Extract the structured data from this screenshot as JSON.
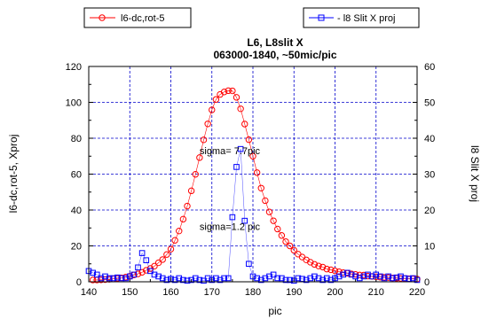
{
  "chart_data": {
    "type": "scatter",
    "title": "L6, L8slit X",
    "subtitle": "063000-1840, ~50mic/pic",
    "xlabel": "pic",
    "ylabel_left": "l6-dc,rot-5, Xproj",
    "ylabel_right": "l8 Slit X proj",
    "xlim": [
      140,
      220
    ],
    "ylim_left": [
      0,
      120
    ],
    "ylim_right": [
      0,
      60
    ],
    "x_ticks": [
      "140",
      "150",
      "160",
      "170",
      "180",
      "190",
      "200",
      "210",
      "220"
    ],
    "y_left_ticks": [
      "0",
      "20",
      "40",
      "60",
      "80",
      "100",
      "120"
    ],
    "y_right_ticks": [
      "0",
      "10",
      "20",
      "30",
      "40",
      "50",
      "60"
    ],
    "grid": true,
    "legend_position": "top",
    "annotations": [
      {
        "text": "sigma= 7.7pic",
        "x": 167,
        "y_left": 71
      },
      {
        "text": "sigma=1.2 pic",
        "x": 167,
        "y_left": 29
      }
    ],
    "series": [
      {
        "name": "l6-dc,rot-5",
        "axis": "left",
        "color": "#ff0000",
        "marker": "circle",
        "x": [
          141,
          142,
          143,
          144,
          145,
          146,
          147,
          148,
          149,
          150,
          151,
          152,
          153,
          154,
          155,
          156,
          157,
          158,
          159,
          160,
          161,
          162,
          163,
          164,
          165,
          166,
          167,
          168,
          169,
          170,
          171,
          172,
          173,
          174,
          175,
          176,
          177,
          178,
          179,
          180,
          181,
          182,
          183,
          184,
          185,
          186,
          187,
          188,
          189,
          190,
          191,
          192,
          193,
          194,
          195,
          196,
          197,
          198,
          199,
          200,
          201,
          202,
          203,
          204,
          205,
          206,
          207,
          208,
          209,
          210,
          211,
          212,
          213,
          214,
          215,
          216,
          217,
          218,
          219,
          220
        ],
        "y": [
          1.0,
          1.0,
          1.1,
          1.2,
          1.4,
          1.6,
          1.9,
          2.2,
          2.6,
          3.1,
          3.8,
          4.4,
          5.3,
          6.4,
          7.4,
          8.7,
          10.6,
          12.4,
          15.2,
          18.2,
          23.1,
          28.3,
          34.9,
          42.2,
          50.7,
          59.9,
          69.2,
          79.1,
          88.0,
          95.8,
          101.6,
          104.4,
          105.8,
          106.5,
          106.4,
          102.8,
          96.4,
          87.9,
          79.2,
          70.0,
          60.8,
          52.2,
          45.2,
          38.9,
          34.0,
          29.4,
          25.8,
          22.4,
          20.0,
          17.6,
          15.4,
          13.8,
          12.2,
          10.9,
          9.7,
          8.8,
          8.2,
          7.1,
          6.7,
          6.1,
          5.6,
          5.1,
          4.8,
          4.4,
          4.1,
          3.8,
          3.7,
          3.2,
          3.0,
          2.8,
          2.6,
          2.5,
          2.4,
          2.1,
          2.0,
          1.9,
          1.8,
          1.7,
          1.6,
          1.5
        ]
      },
      {
        "name": "l8 Slit X proj",
        "axis": "right",
        "color": "#0000ff",
        "marker": "square",
        "x": [
          140,
          141,
          142,
          143,
          144,
          145,
          146,
          147,
          148,
          149,
          150,
          151,
          152,
          153,
          154,
          155,
          156,
          157,
          158,
          159,
          160,
          161,
          162,
          163,
          164,
          165,
          166,
          167,
          168,
          169,
          170,
          171,
          172,
          173,
          174,
          175,
          176,
          177,
          178,
          179,
          180,
          181,
          182,
          183,
          184,
          185,
          186,
          187,
          188,
          189,
          190,
          191,
          192,
          193,
          194,
          195,
          196,
          197,
          198,
          199,
          200,
          201,
          202,
          203,
          204,
          205,
          206,
          207,
          208,
          209,
          210,
          211,
          212,
          213,
          214,
          215,
          216,
          217,
          218,
          219,
          220
        ],
        "y": [
          3.0,
          2.5,
          2.0,
          1.0,
          1.5,
          1.0,
          1.0,
          1.2,
          1.0,
          1.0,
          1.5,
          2.0,
          4.0,
          8.0,
          6.0,
          3.0,
          2.0,
          1.5,
          1.0,
          0.5,
          0.8,
          0.5,
          1.0,
          0.5,
          0.3,
          0.5,
          1.0,
          0.5,
          0.3,
          1.0,
          0.5,
          1.0,
          0.5,
          1.0,
          1.0,
          18.0,
          32.0,
          37.0,
          17.0,
          5.0,
          1.5,
          1.0,
          0.5,
          1.0,
          1.5,
          2.0,
          1.0,
          1.0,
          0.5,
          0.5,
          0.3,
          1.0,
          0.8,
          0.5,
          1.0,
          1.5,
          1.0,
          0.5,
          1.0,
          0.5,
          1.0,
          1.5,
          2.0,
          2.5,
          2.0,
          1.5,
          1.0,
          1.5,
          2.0,
          1.5,
          2.0,
          1.5,
          1.0,
          1.5,
          1.0,
          1.2,
          1.5,
          1.0,
          0.8,
          1.0,
          0.5
        ]
      }
    ]
  }
}
